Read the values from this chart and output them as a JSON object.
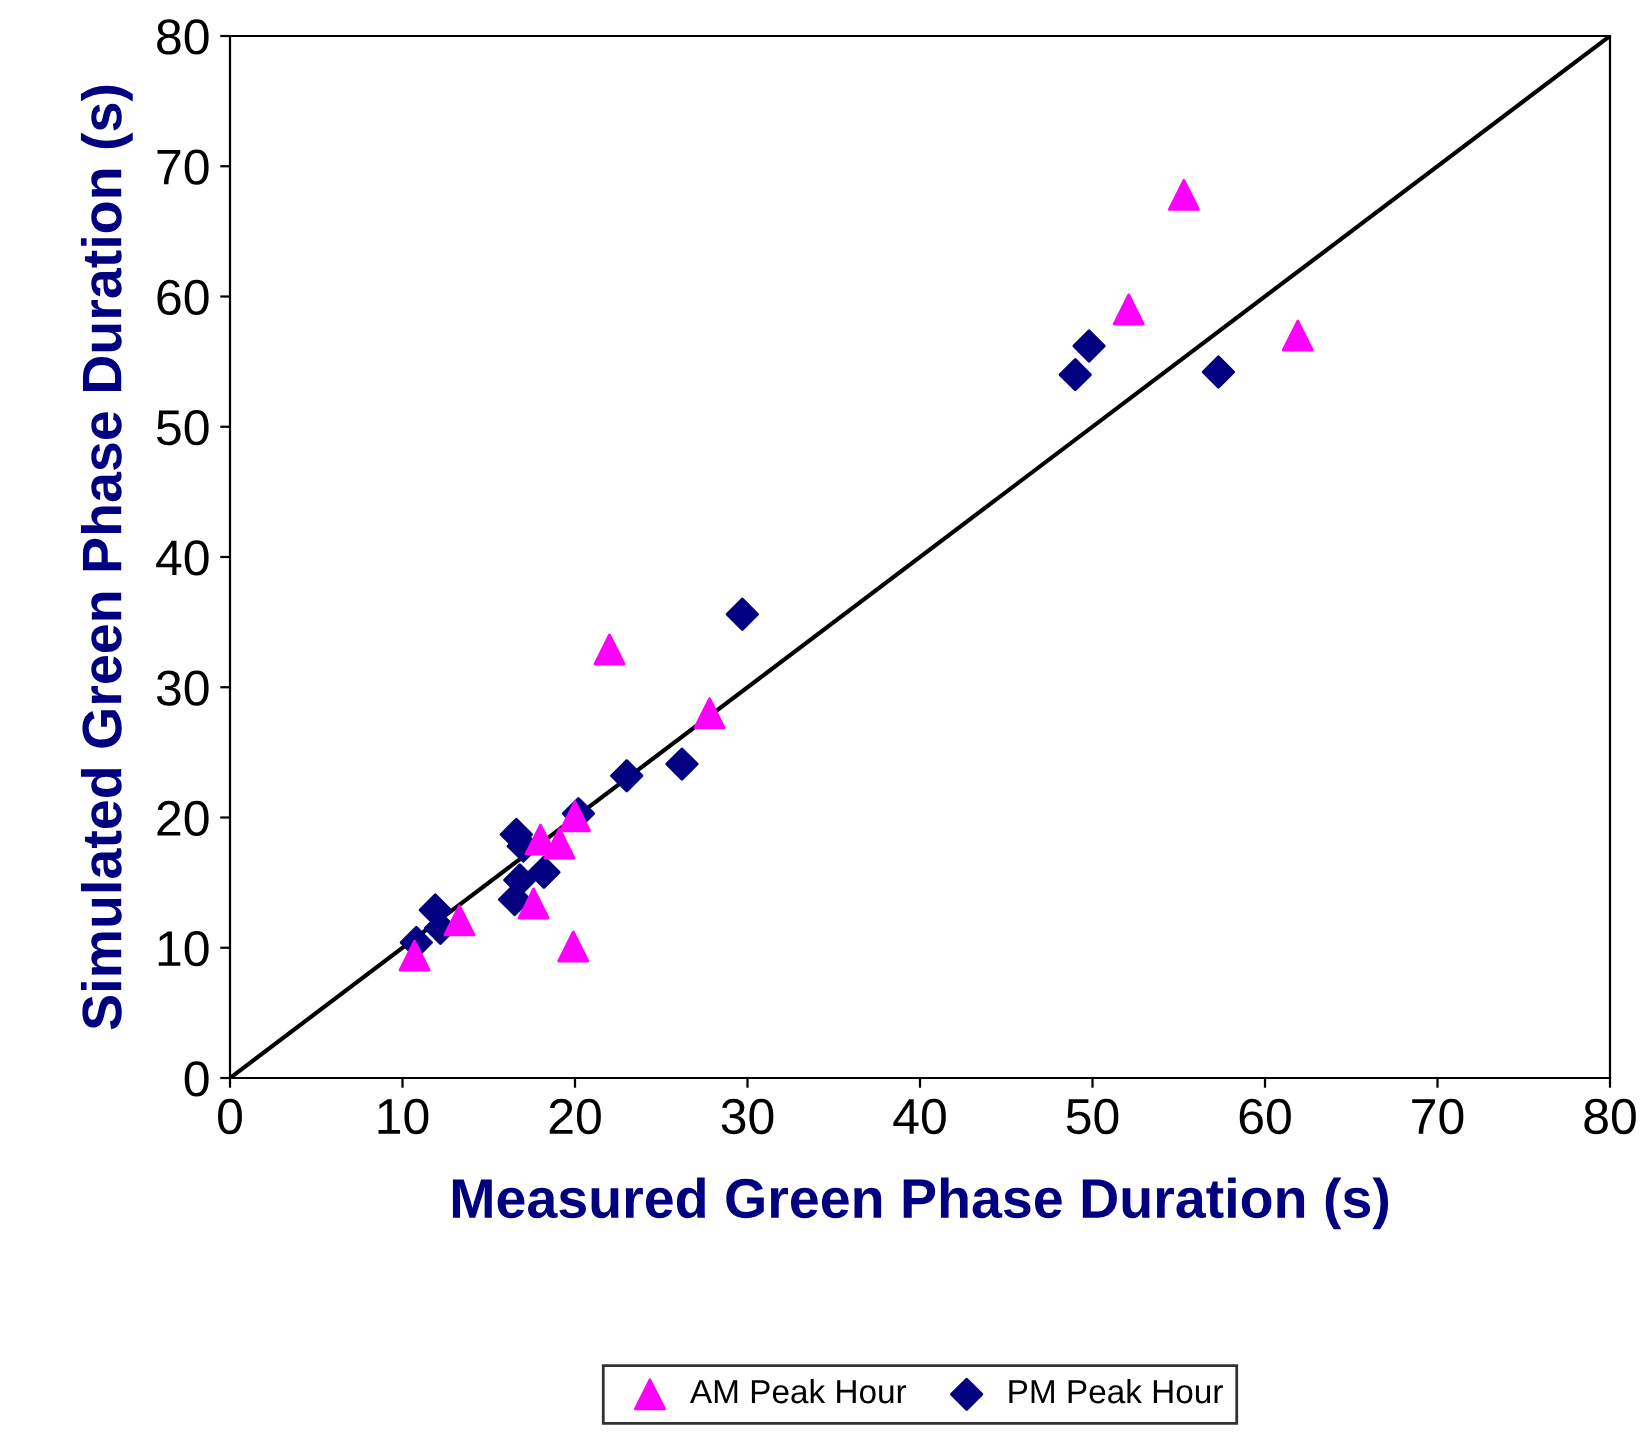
{
  "chart_data": {
    "type": "scatter",
    "xlabel": "Measured Green Phase Duration (s)",
    "ylabel": "Simulated Green Phase Duration (s)",
    "xlim": [
      0,
      80
    ],
    "ylim": [
      0,
      80
    ],
    "xticks": [
      0,
      10,
      20,
      30,
      40,
      50,
      60,
      70,
      80
    ],
    "yticks": [
      0,
      10,
      20,
      30,
      40,
      50,
      60,
      70,
      80
    ],
    "grid": false,
    "legend": "bottom",
    "series": [
      {
        "name": "AM Peak Hour",
        "color": "#ff00ff",
        "marker": "triangle",
        "x": [
          10.7,
          13.3,
          17.6,
          18,
          19.1,
          20,
          19.9,
          22,
          27.8,
          52.1,
          55.3,
          61.9
        ],
        "values": [
          9.4,
          12.1,
          13.4,
          18.3,
          18,
          20.1,
          10.1,
          32.9,
          28,
          59,
          67.8,
          57
        ]
      },
      {
        "name": "PM Peak Hour",
        "color": "#000080",
        "marker": "diamond",
        "x": [
          10.8,
          11.9,
          12.2,
          16.6,
          17,
          16.8,
          18.2,
          16.5,
          20.2,
          23,
          26.2,
          29.7,
          49,
          49.8,
          57.3
        ],
        "values": [
          10.4,
          12.9,
          11.5,
          18.7,
          17.8,
          15.2,
          15.8,
          13.7,
          20.3,
          23.2,
          24.1,
          35.6,
          54,
          56.2,
          54.2
        ]
      },
      {
        "type": "line",
        "color": "#000000",
        "marker": "none",
        "x": [
          0,
          80
        ],
        "values": [
          0,
          80
        ]
      }
    ]
  }
}
